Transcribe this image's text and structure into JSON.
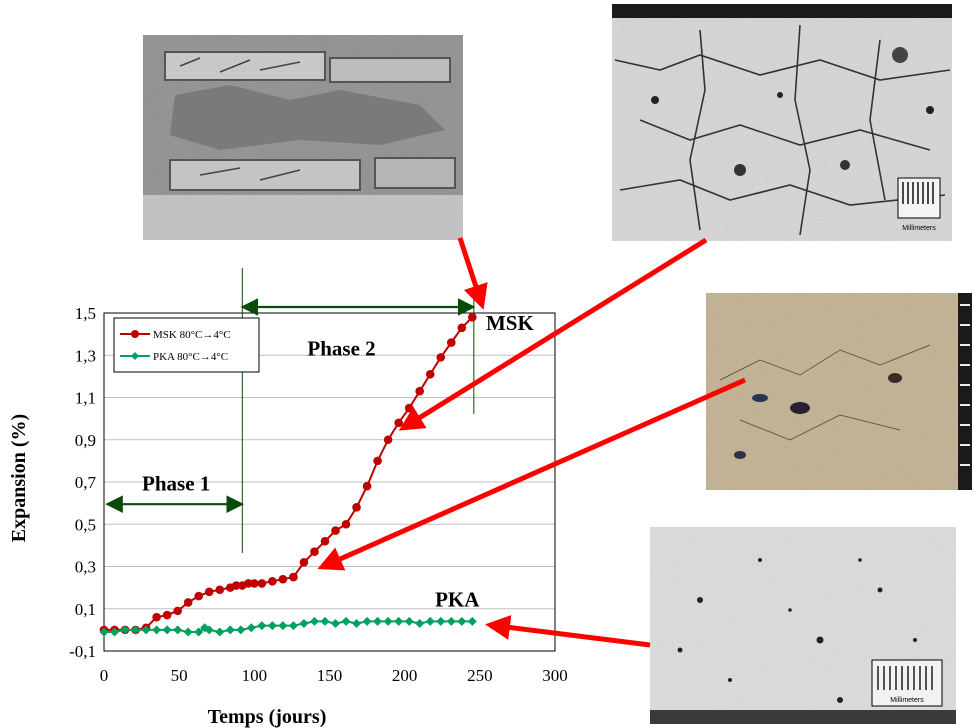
{
  "chart_data": {
    "type": "line",
    "xlabel": "Temps (jours)",
    "ylabel": "Expansion (%)",
    "xlim": [
      0,
      300
    ],
    "ylim": [
      -0.1,
      1.5
    ],
    "xticks": [
      0,
      50,
      100,
      150,
      200,
      250,
      300
    ],
    "yticks": [
      -0.1,
      0.1,
      0.3,
      0.5,
      0.7,
      0.9,
      1.1,
      1.3,
      1.5
    ],
    "ytick_labels": [
      "-0,1",
      "0,1",
      "0,3",
      "0,5",
      "0,7",
      "0,9",
      "1,1",
      "1,3",
      "1,5"
    ],
    "grid": true,
    "legend_position": "top-left",
    "series": [
      {
        "name": "MSK 80°C→4°C",
        "color": "#c00000",
        "marker": "circle",
        "x": [
          0,
          7,
          14,
          21,
          28,
          35,
          42,
          49,
          56,
          63,
          70,
          77,
          84,
          88,
          92,
          96,
          100,
          105,
          112,
          119,
          126,
          133,
          140,
          147,
          154,
          161,
          168,
          175,
          182,
          189,
          196,
          203,
          210,
          217,
          224,
          231,
          238,
          245
        ],
        "y": [
          0.0,
          0.0,
          0.0,
          0.0,
          0.01,
          0.06,
          0.07,
          0.09,
          0.13,
          0.16,
          0.18,
          0.19,
          0.2,
          0.21,
          0.21,
          0.22,
          0.22,
          0.22,
          0.23,
          0.24,
          0.25,
          0.32,
          0.37,
          0.42,
          0.47,
          0.5,
          0.58,
          0.68,
          0.8,
          0.9,
          0.98,
          1.05,
          1.13,
          1.21,
          1.29,
          1.36,
          1.43,
          1.48
        ]
      },
      {
        "name": "PKA 80°C→4°C",
        "color": "#00a060",
        "marker": "diamond",
        "x": [
          0,
          7,
          14,
          21,
          28,
          35,
          42,
          49,
          56,
          63,
          67,
          70,
          77,
          84,
          91,
          98,
          105,
          112,
          119,
          126,
          133,
          140,
          147,
          154,
          161,
          168,
          175,
          182,
          189,
          196,
          203,
          210,
          217,
          224,
          231,
          238,
          245
        ],
        "y": [
          -0.01,
          -0.01,
          0.0,
          0.0,
          0.0,
          0.0,
          0.0,
          0.0,
          -0.01,
          -0.01,
          0.01,
          0.0,
          -0.01,
          0.0,
          0.0,
          0.01,
          0.02,
          0.02,
          0.02,
          0.02,
          0.03,
          0.04,
          0.04,
          0.03,
          0.04,
          0.03,
          0.04,
          0.04,
          0.04,
          0.04,
          0.04,
          0.03,
          0.04,
          0.04,
          0.04,
          0.04,
          0.04
        ]
      }
    ],
    "annotations": [
      {
        "text": "Phase 1",
        "x": 48,
        "y": 0.66,
        "arrow_from": 2,
        "arrow_to": 92
      },
      {
        "text": "Phase 2",
        "x": 158,
        "y": 1.3,
        "arrow_from": 92,
        "arrow_to": 246
      },
      {
        "text": "MSK",
        "x": 270,
        "y": 1.42
      },
      {
        "text": "PKA",
        "x": 235,
        "y": 0.11
      }
    ],
    "phase_lines_x": [
      92,
      246
    ],
    "colors": {
      "axis": "#000000",
      "grid": "#bfbfbf",
      "phase_arrow": "#0a4a0a",
      "pointer_arrow": "#ff0000"
    }
  },
  "photos": [
    {
      "label": "MSK-specimen-after-test",
      "icon": "crumbled-concrete-bars-photo"
    },
    {
      "label": "MSK-cracked-section",
      "icon": "cracked-concrete-micrograph",
      "scale_text": "Millimeters"
    },
    {
      "label": "MSK-early-section",
      "icon": "colored-concrete-micrograph"
    },
    {
      "label": "PKA-section",
      "icon": "intact-concrete-micrograph",
      "scale_text": "Millimeters"
    }
  ]
}
